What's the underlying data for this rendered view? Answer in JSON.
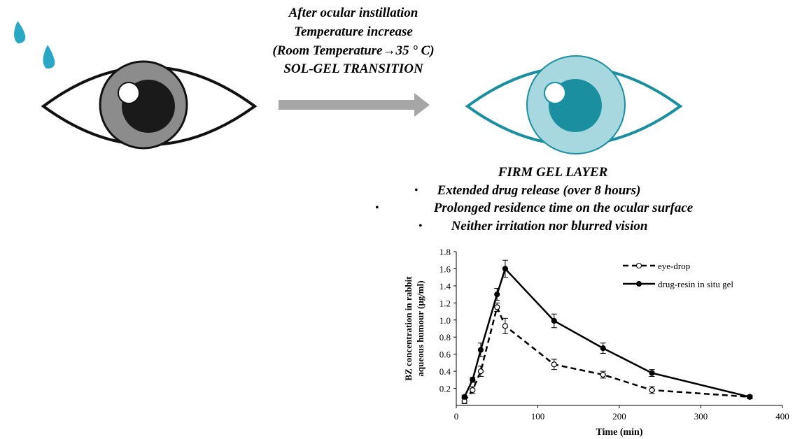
{
  "diagram": {
    "top_lines": [
      "After ocular instillation",
      "Temperature increase",
      "(Room Temperature→35 ° C)",
      "SOL-GEL TRANSITION"
    ],
    "result_title": "FIRM GEL LAYER",
    "bullets": [
      "Extended drug release (over 8 hours)",
      "Prolonged residence time on the ocular surface",
      "Neither irritation nor blurred vision"
    ]
  },
  "chart_data": {
    "type": "line",
    "y_label": [
      "BZ concentration in rabbit",
      "aqueous humour (μg/ml)"
    ],
    "x_label": "Time (min)",
    "x": [
      10,
      20,
      30,
      50,
      60,
      120,
      180,
      240,
      360
    ],
    "series": [
      {
        "name": "eye-drop",
        "color": "#000000",
        "dash": "dashed",
        "marker": "open",
        "values": [
          0.05,
          0.18,
          0.4,
          1.15,
          0.93,
          0.48,
          0.36,
          0.18,
          0.1
        ],
        "errors": [
          0.03,
          0.04,
          0.06,
          0.05,
          0.09,
          0.06,
          0.04,
          0.04,
          0.02
        ]
      },
      {
        "name": "drug-resin in situ gel",
        "color": "#000000",
        "dash": "solid",
        "marker": "filled",
        "values": [
          0.1,
          0.3,
          0.65,
          1.3,
          1.6,
          0.99,
          0.67,
          0.38,
          0.1
        ],
        "errors": [
          0.02,
          0.03,
          0.08,
          0.07,
          0.1,
          0.08,
          0.06,
          0.04,
          0.02
        ]
      }
    ],
    "xlim": [
      0,
      400
    ],
    "xticks": [
      0,
      100,
      200,
      300,
      400
    ],
    "ylim": [
      0,
      1.8
    ],
    "yticks": [
      0.2,
      0.4,
      0.6,
      0.8,
      {
        "value": 1.0,
        "label": "1.0"
      },
      1.2,
      1.4,
      1.6,
      1.8
    ],
    "legend": "upper right"
  }
}
